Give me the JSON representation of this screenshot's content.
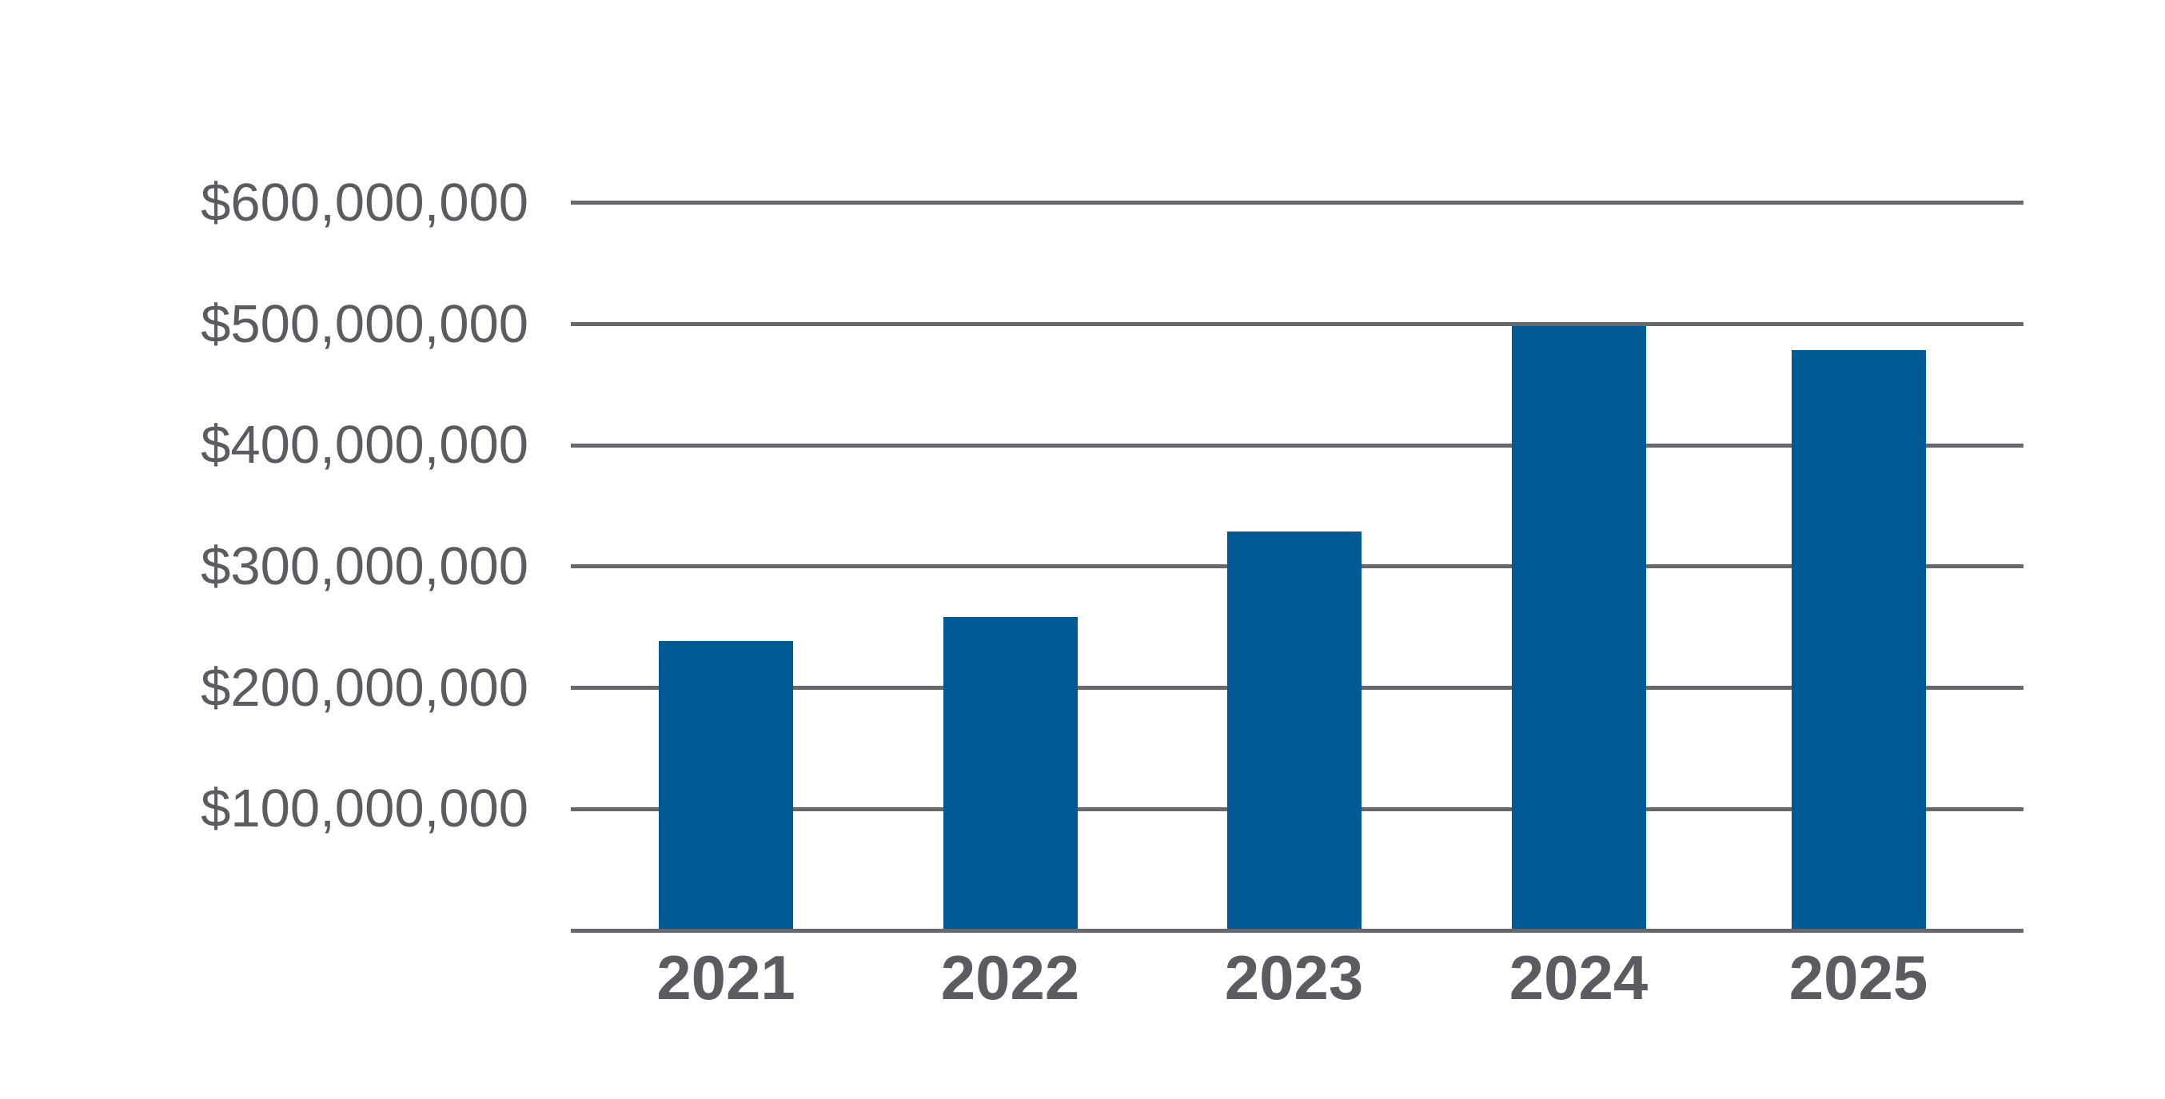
{
  "chart_data": {
    "type": "bar",
    "title": "",
    "xlabel": "",
    "ylabel": "",
    "categories": [
      "2021",
      "2022",
      "2023",
      "2024",
      "2025"
    ],
    "values": [
      240000000,
      260000000,
      330000000,
      500000000,
      480000000
    ],
    "series_name": "",
    "ylim": [
      0,
      600000000
    ],
    "ytick_interval": 100000000,
    "yticks": [
      100000000,
      200000000,
      300000000,
      400000000,
      500000000,
      600000000
    ],
    "ytick_labels": [
      "$100,000,000",
      "$200,000,000",
      "$300,000,000",
      "$400,000,000",
      "$500,000,000",
      "$600,000,000"
    ],
    "grid": "horizontal",
    "legend": false,
    "colors": {
      "bar": "#005A93",
      "gridline": "#66686D",
      "axis_line": "#66686D",
      "tick_label": "#5A5C61",
      "background": "#FFFFFF"
    }
  }
}
